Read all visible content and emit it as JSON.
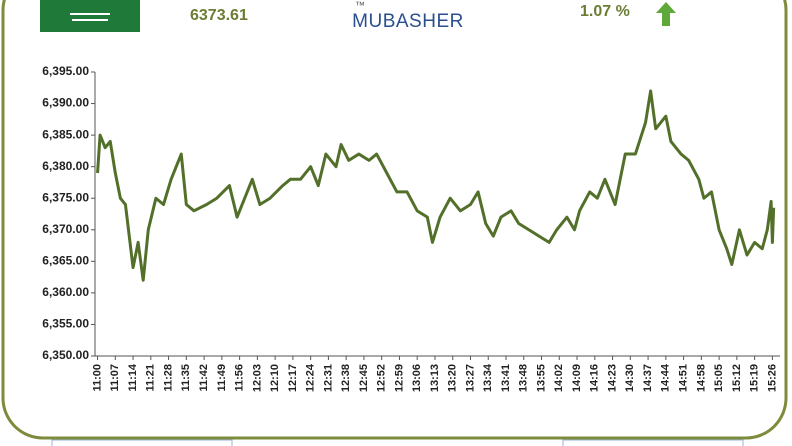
{
  "header": {
    "price": "6373.61",
    "logo": "MUBASHER",
    "change": "1.07 %"
  },
  "chart_data": {
    "type": "line",
    "color": "#53702a",
    "x": [
      660,
      661,
      663,
      665,
      667,
      669,
      671,
      674,
      676,
      678,
      680,
      683,
      686,
      689,
      693,
      695,
      698,
      703,
      707,
      712,
      715,
      718,
      721,
      724,
      728,
      733,
      736,
      740,
      744,
      747,
      750,
      754,
      756,
      759,
      763,
      767,
      770,
      774,
      778,
      782,
      786,
      790,
      792,
      795,
      799,
      803,
      807,
      810,
      813,
      816,
      819,
      823,
      826,
      830,
      834,
      838,
      841,
      845,
      848,
      850,
      854,
      857,
      860,
      864,
      868,
      872,
      876,
      878,
      880,
      884,
      886,
      890,
      893,
      897,
      899,
      902,
      905,
      908,
      910,
      913,
      916,
      919,
      922,
      924,
      925.5,
      926,
      926.5
    ],
    "values": [
      6379,
      6385,
      6383,
      6384,
      6379,
      6375,
      6374,
      6364,
      6368,
      6362,
      6370,
      6375,
      6374,
      6378,
      6382,
      6374,
      6373,
      6374,
      6375,
      6377,
      6372,
      6375,
      6378,
      6374,
      6375,
      6377,
      6378,
      6378,
      6380,
      6377,
      6382,
      6380,
      6383.5,
      6381,
      6382,
      6381,
      6382,
      6379,
      6376,
      6376,
      6373,
      6372,
      6368,
      6372,
      6375,
      6373,
      6374,
      6376,
      6371,
      6369,
      6372,
      6373,
      6371,
      6370,
      6369,
      6368,
      6370,
      6372,
      6370,
      6373,
      6376,
      6375,
      6378,
      6374,
      6382,
      6382,
      6387,
      6392,
      6386,
      6388,
      6384,
      6382,
      6381,
      6378,
      6375,
      6376,
      6370,
      6367,
      6364.5,
      6370,
      6366,
      6368,
      6367,
      6370,
      6374.5,
      6368,
      6373.5
    ],
    "xlim": [
      659,
      929
    ],
    "ylim": [
      6350,
      6395
    ],
    "yticks": [
      {
        "value": 6350,
        "label": "6,350.00"
      },
      {
        "value": 6355,
        "label": "6,355.00"
      },
      {
        "value": 6360,
        "label": "6,360.00"
      },
      {
        "value": 6365,
        "label": "6,365.00"
      },
      {
        "value": 6370,
        "label": "6,370.00"
      },
      {
        "value": 6375,
        "label": "6,375.00"
      },
      {
        "value": 6380,
        "label": "6,380.00"
      },
      {
        "value": 6385,
        "label": "6,385.00"
      },
      {
        "value": 6390,
        "label": "6,390.00"
      },
      {
        "value": 6395,
        "label": "6,395.00"
      }
    ],
    "xticks": [
      {
        "value": 660,
        "label": "11:00"
      },
      {
        "value": 667,
        "label": "11:07"
      },
      {
        "value": 674,
        "label": "11:14"
      },
      {
        "value": 681,
        "label": "11:21"
      },
      {
        "value": 688,
        "label": "11:28"
      },
      {
        "value": 695,
        "label": "11:35"
      },
      {
        "value": 702,
        "label": "11:42"
      },
      {
        "value": 709,
        "label": "11:49"
      },
      {
        "value": 716,
        "label": "11:56"
      },
      {
        "value": 723,
        "label": "12:03"
      },
      {
        "value": 730,
        "label": "12:10"
      },
      {
        "value": 737,
        "label": "12:17"
      },
      {
        "value": 744,
        "label": "12:24"
      },
      {
        "value": 751,
        "label": "12:31"
      },
      {
        "value": 758,
        "label": "12:38"
      },
      {
        "value": 765,
        "label": "12:45"
      },
      {
        "value": 772,
        "label": "12:52"
      },
      {
        "value": 779,
        "label": "12:59"
      },
      {
        "value": 786,
        "label": "13:06"
      },
      {
        "value": 793,
        "label": "13:13"
      },
      {
        "value": 800,
        "label": "13:20"
      },
      {
        "value": 807,
        "label": "13:27"
      },
      {
        "value": 814,
        "label": "13:34"
      },
      {
        "value": 821,
        "label": "13:41"
      },
      {
        "value": 828,
        "label": "13:48"
      },
      {
        "value": 835,
        "label": "13:55"
      },
      {
        "value": 842,
        "label": "14:02"
      },
      {
        "value": 849,
        "label": "14:09"
      },
      {
        "value": 856,
        "label": "14:16"
      },
      {
        "value": 863,
        "label": "14:23"
      },
      {
        "value": 870,
        "label": "14:30"
      },
      {
        "value": 877,
        "label": "14:37"
      },
      {
        "value": 884,
        "label": "14:44"
      },
      {
        "value": 891,
        "label": "14:51"
      },
      {
        "value": 898,
        "label": "14:58"
      },
      {
        "value": 905,
        "label": "15:05"
      },
      {
        "value": 912,
        "label": "15:12"
      },
      {
        "value": 919,
        "label": "15:19"
      },
      {
        "value": 926,
        "label": "15:26"
      }
    ],
    "grid": false
  }
}
